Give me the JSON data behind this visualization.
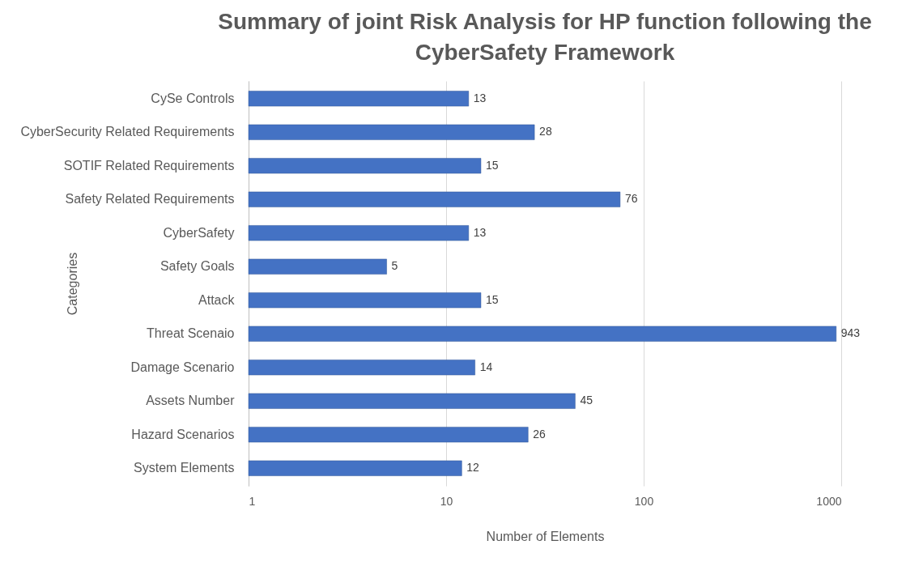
{
  "chart_data": {
    "type": "bar",
    "orientation": "horizontal",
    "title": "Summary of joint Risk Analysis for HP function following the CyberSafety Framework",
    "xlabel": "Number of Elements",
    "ylabel": "Categories",
    "categories": [
      "CySe Controls",
      "CyberSecurity Related  Requirements ",
      "SOTIF Related  Requirements",
      "Safety Related  Requirements",
      "CyberSafety",
      "Safety Goals",
      "Attack",
      "Threat Scenaio",
      "Damage Scenario",
      "Assets Number",
      "Hazard Scenarios",
      "System Elements"
    ],
    "values": [
      13,
      28,
      15,
      76,
      13,
      5,
      15,
      943,
      14,
      45,
      26,
      12
    ],
    "color": "#4472c4",
    "log": "x",
    "xlim": [
      1,
      1000
    ],
    "xticks": [
      1,
      10,
      100,
      1000
    ],
    "grid": "x",
    "data_labels": true
  }
}
